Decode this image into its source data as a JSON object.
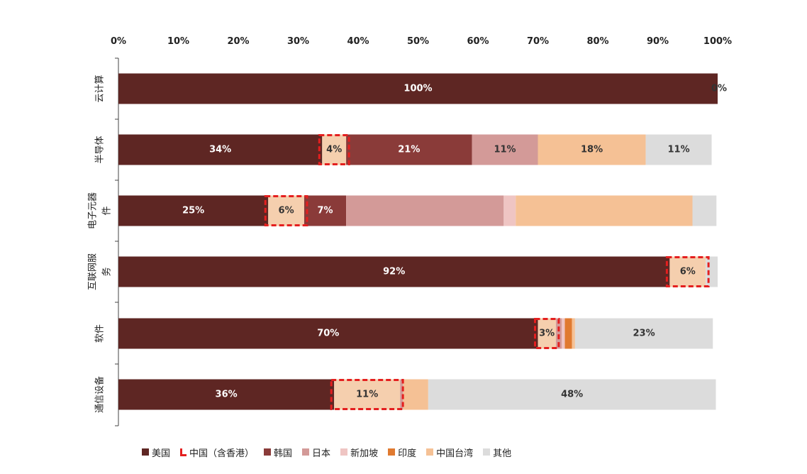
{
  "chart_data": {
    "type": "bar",
    "orientation": "horizontal",
    "stacked": true,
    "xlim": [
      0,
      100
    ],
    "x_ticks": [
      "0%",
      "10%",
      "20%",
      "30%",
      "40%",
      "50%",
      "60%",
      "70%",
      "80%",
      "90%",
      "100%"
    ],
    "x_axis_position": "top",
    "grid": false,
    "legend_position": "bottom",
    "categories": [
      "云计算",
      "半导体",
      "电子元器件",
      "互联网服务",
      "软件",
      "通信设备"
    ],
    "category_label_lines": [
      [
        "云计算"
      ],
      [
        "半导体"
      ],
      [
        "电子元器",
        "件"
      ],
      [
        "互联网服",
        "务"
      ],
      [
        "软件"
      ],
      [
        "通信设备"
      ]
    ],
    "series": [
      {
        "name": "美国",
        "color": "#5e2623",
        "values": [
          100,
          34,
          25,
          92,
          70,
          36
        ],
        "labels": [
          "100%",
          "34%",
          "25%",
          "92%",
          "70%",
          "36%"
        ]
      },
      {
        "name": "中国（含香港）",
        "color": "#f5cfae",
        "values": [
          0,
          4,
          6,
          6,
          3,
          11
        ],
        "labels": [
          "0%",
          "4%",
          "6%",
          "6%",
          "3%",
          "11%"
        ],
        "highlight": true
      },
      {
        "name": "韩国",
        "color": "#8a3b39",
        "values": [
          0,
          21,
          7,
          0,
          0,
          0
        ],
        "labels": [
          "",
          "21%",
          "7%",
          "",
          "",
          ""
        ]
      },
      {
        "name": "日本",
        "color": "#d39a98",
        "values": [
          0,
          11,
          26.3,
          0,
          1,
          0.5
        ],
        "labels": [
          "",
          "11%",
          "",
          "",
          "",
          ""
        ]
      },
      {
        "name": "新加坡",
        "color": "#efc5c3",
        "values": [
          0,
          0,
          2,
          0,
          0.5,
          0
        ],
        "labels": [
          "",
          "",
          "",
          "",
          "",
          ""
        ]
      },
      {
        "name": "印度",
        "color": "#e07a30",
        "values": [
          0,
          0,
          0,
          0,
          1.2,
          0
        ],
        "labels": [
          "",
          "",
          "",
          "",
          "",
          ""
        ]
      },
      {
        "name": "中国台湾",
        "color": "#f5c195",
        "values": [
          0,
          18,
          29.5,
          0,
          0.5,
          4.2
        ],
        "labels": [
          "",
          "18%",
          "",
          "",
          "",
          ""
        ]
      },
      {
        "name": "其他",
        "color": "#dcdcdc",
        "values": [
          0,
          11,
          4,
          2,
          23,
          48
        ],
        "labels": [
          "",
          "11%",
          "",
          "",
          "23%",
          "48%"
        ]
      }
    ],
    "highlight_color": "#e41f1f"
  }
}
